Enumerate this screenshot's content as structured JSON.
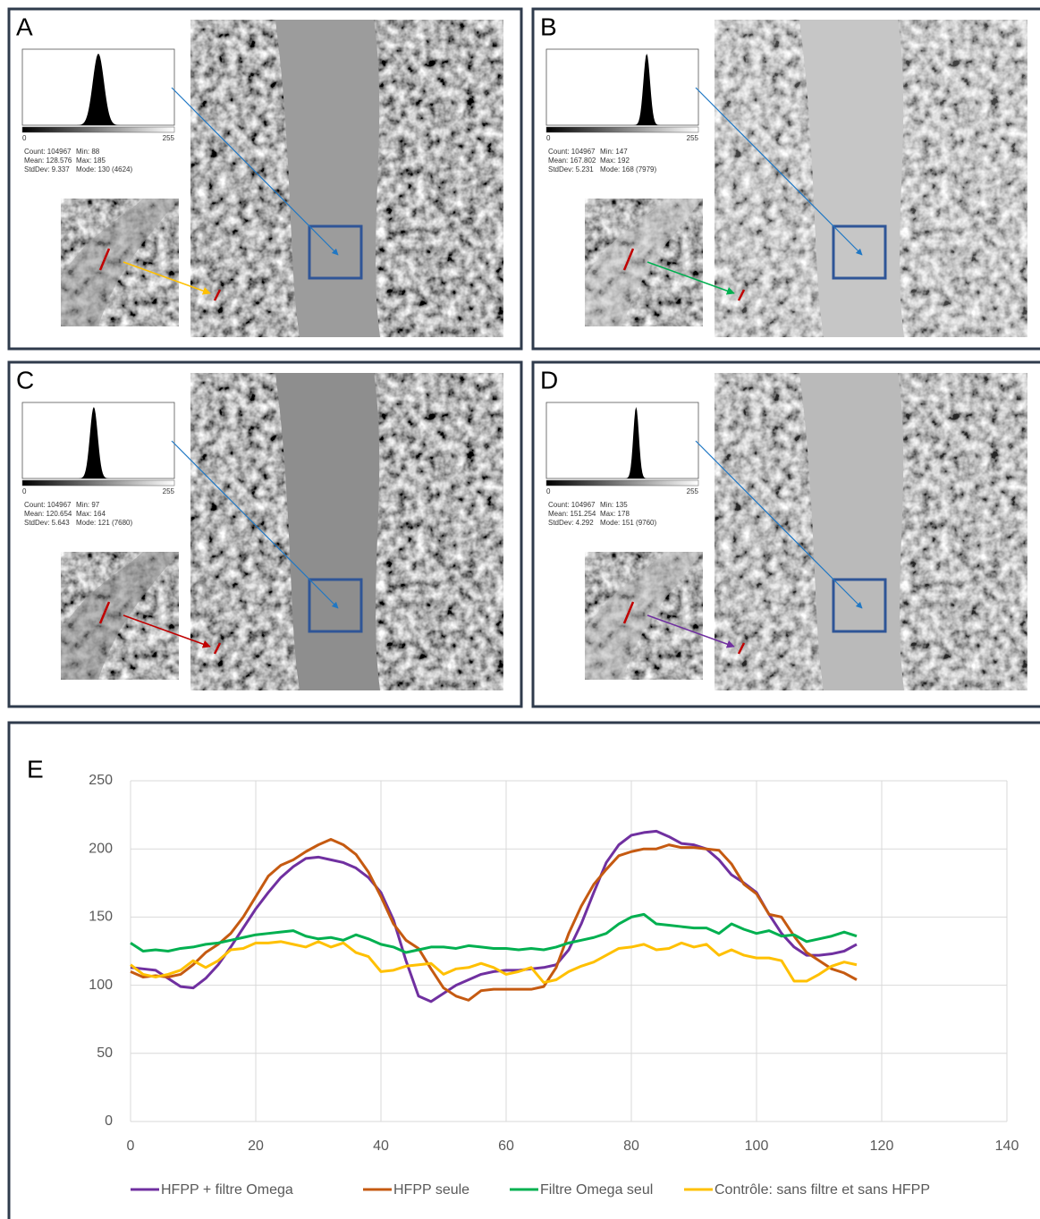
{
  "panels": [
    {
      "label": "A",
      "axis_min": "0",
      "axis_max": "255",
      "stats_left": [
        "Count: 104967",
        "Mean: 128.576",
        "StdDev: 9.337"
      ],
      "stats_right": [
        "Min: 88",
        "Max: 185",
        "Mode: 130 (4624)"
      ]
    },
    {
      "label": "B",
      "axis_min": "0",
      "axis_max": "255",
      "stats_left": [
        "Count: 104967",
        "Mean: 167.802",
        "StdDev: 5.231"
      ],
      "stats_right": [
        "Min: 147",
        "Max: 192",
        "Mode: 168 (7979)"
      ]
    },
    {
      "label": "C",
      "axis_min": "0",
      "axis_max": "255",
      "stats_left": [
        "Count: 104967",
        "Mean: 120.654",
        "StdDev: 5.643"
      ],
      "stats_right": [
        "Min: 97",
        "Max: 164",
        "Mode: 121 (7680)"
      ]
    },
    {
      "label": "D",
      "axis_min": "0",
      "axis_max": "255",
      "stats_left": [
        "Count: 104967",
        "Mean: 151.254",
        "StdDev: 4.292"
      ],
      "stats_right": [
        "Min: 135",
        "Max: 178",
        "Mode: 151 (9760)"
      ]
    }
  ],
  "chart_data": {
    "type": "line",
    "title": "E",
    "x": [
      0,
      2,
      4,
      6,
      8,
      10,
      12,
      14,
      16,
      18,
      20,
      22,
      24,
      26,
      28,
      30,
      32,
      34,
      36,
      38,
      40,
      42,
      44,
      46,
      48,
      50,
      52,
      54,
      56,
      58,
      60,
      62,
      64,
      66,
      68,
      70,
      72,
      74,
      76,
      78,
      80,
      82,
      84,
      86,
      88,
      90,
      92,
      94,
      96,
      98,
      100,
      102,
      104,
      106,
      108,
      110,
      112,
      114,
      116
    ],
    "series": [
      {
        "name": "HFPP + filtre Omega",
        "color": "#7030a0",
        "values": [
          113,
          112,
          111,
          105,
          99,
          98,
          105,
          115,
          128,
          142,
          156,
          168,
          179,
          187,
          193,
          194,
          192,
          190,
          186,
          179,
          168,
          148,
          118,
          92,
          88,
          94,
          100,
          104,
          108,
          110,
          111,
          111,
          112,
          113,
          115,
          126,
          145,
          168,
          190,
          203,
          210,
          212,
          213,
          209,
          204,
          203,
          200,
          192,
          181,
          175,
          168,
          152,
          138,
          128,
          122,
          122,
          123,
          125,
          130
        ]
      },
      {
        "name": "HFPP seule",
        "color": "#c55a11",
        "values": [
          110,
          106,
          107,
          106,
          108,
          115,
          124,
          130,
          138,
          150,
          165,
          180,
          188,
          192,
          198,
          203,
          207,
          203,
          196,
          183,
          165,
          145,
          133,
          127,
          112,
          98,
          92,
          89,
          96,
          97,
          97,
          97,
          97,
          99,
          113,
          138,
          158,
          174,
          185,
          195,
          198,
          200,
          200,
          203,
          201,
          201,
          200,
          199,
          189,
          174,
          167,
          152,
          150,
          136,
          124,
          118,
          112,
          109,
          104
        ]
      },
      {
        "name": "Filtre Omega seul",
        "color": "#00b050",
        "values": [
          131,
          125,
          126,
          125,
          127,
          128,
          130,
          131,
          133,
          135,
          137,
          138,
          139,
          140,
          136,
          134,
          135,
          133,
          137,
          134,
          130,
          128,
          124,
          126,
          128,
          128,
          127,
          129,
          128,
          127,
          127,
          126,
          127,
          126,
          128,
          131,
          133,
          135,
          138,
          145,
          150,
          152,
          145,
          144,
          143,
          142,
          142,
          138,
          145,
          141,
          138,
          140,
          136,
          137,
          132,
          134,
          136,
          139,
          136
        ]
      },
      {
        "name": "Contrôle: sans filtre et sans HFPP",
        "color": "#ffc000",
        "values": [
          115,
          108,
          106,
          108,
          111,
          118,
          113,
          118,
          126,
          127,
          131,
          131,
          132,
          130,
          128,
          132,
          128,
          131,
          124,
          121,
          110,
          111,
          114,
          115,
          116,
          108,
          112,
          113,
          116,
          113,
          108,
          110,
          113,
          102,
          104,
          110,
          114,
          117,
          122,
          127,
          128,
          130,
          126,
          127,
          131,
          128,
          130,
          122,
          126,
          122,
          120,
          120,
          118,
          103,
          103,
          108,
          114,
          117,
          115
        ]
      }
    ],
    "xlim": [
      0,
      140
    ],
    "xticks": [
      0,
      20,
      40,
      60,
      80,
      100,
      120,
      140
    ],
    "ylim": [
      0,
      250
    ],
    "yticks": [
      0,
      50,
      100,
      150,
      200,
      250
    ],
    "grid": true,
    "legend": "bottom"
  }
}
